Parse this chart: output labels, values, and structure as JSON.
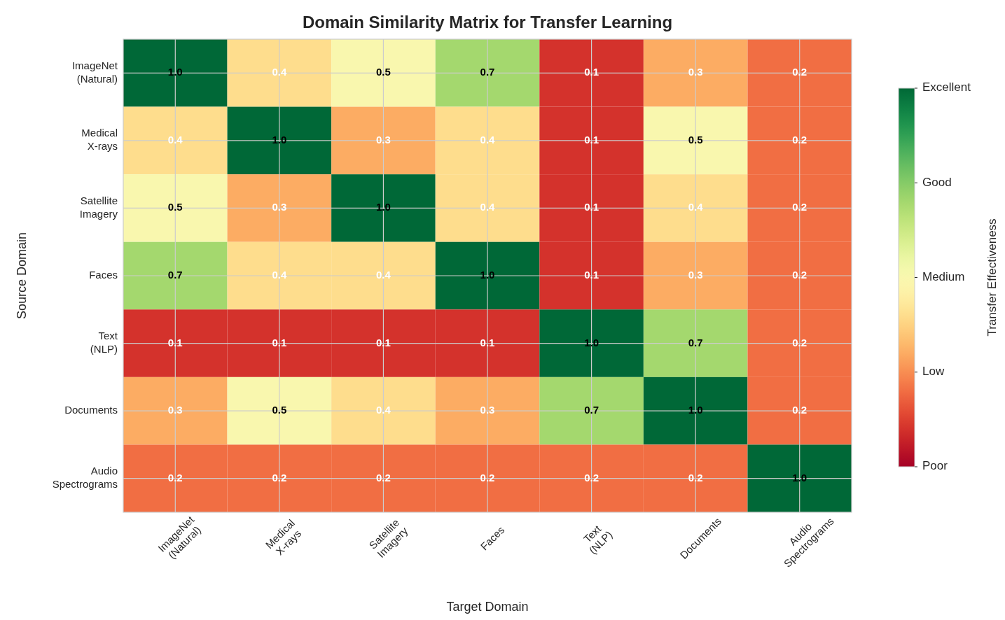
{
  "chart_data": {
    "type": "heatmap",
    "title": "Domain Similarity Matrix for Transfer Learning",
    "xlabel": "Target Domain",
    "ylabel": "Source Domain",
    "clabel": "Transfer Effectiveness",
    "categories": [
      "ImageNet\n(Natural)",
      "Medical\nX-rays",
      "Satellite\nImagery",
      "Faces",
      "Text\n(NLP)",
      "Documents",
      "Audio\nSpectrograms"
    ],
    "y_categories": [
      "ImageNet\n(Natural)",
      "Medical\nX-rays",
      "Satellite\nImagery",
      "Faces",
      "Text\n(NLP)",
      "Documents",
      "Audio\nSpectrograms"
    ],
    "cells": [
      [
        1.0,
        0.4,
        0.5,
        0.7,
        0.1,
        0.3,
        0.2
      ],
      [
        0.4,
        1.0,
        0.3,
        0.4,
        0.1,
        0.5,
        0.2
      ],
      [
        0.5,
        0.3,
        1.0,
        0.4,
        0.1,
        0.4,
        0.2
      ],
      [
        0.7,
        0.4,
        0.4,
        1.0,
        0.1,
        0.3,
        0.2
      ],
      [
        0.1,
        0.1,
        0.1,
        0.1,
        1.0,
        0.7,
        0.2
      ],
      [
        0.3,
        0.5,
        0.4,
        0.3,
        0.7,
        1.0,
        0.2
      ],
      [
        0.2,
        0.2,
        0.2,
        0.2,
        0.2,
        0.2,
        1.0
      ]
    ],
    "cell_labels": [
      [
        "1.0",
        "0.4",
        "0.5",
        "0.7",
        "0.1",
        "0.3",
        "0.2"
      ],
      [
        "0.4",
        "1.0",
        "0.3",
        "0.4",
        "0.1",
        "0.5",
        "0.2"
      ],
      [
        "0.5",
        "0.3",
        "1.0",
        "0.4",
        "0.1",
        "0.4",
        "0.2"
      ],
      [
        "0.7",
        "0.4",
        "0.4",
        "1.0",
        "0.1",
        "0.3",
        "0.2"
      ],
      [
        "0.1",
        "0.1",
        "0.1",
        "0.1",
        "1.0",
        "0.7",
        "0.2"
      ],
      [
        "0.3",
        "0.5",
        "0.4",
        "0.3",
        "0.7",
        "1.0",
        "0.2"
      ],
      [
        "0.2",
        "0.2",
        "0.2",
        "0.2",
        "0.2",
        "0.2",
        "1.0"
      ]
    ],
    "clim": [
      0,
      1
    ],
    "cticks": [
      {
        "value": 0,
        "label": "Poor"
      },
      {
        "value": 0.25,
        "label": "Low"
      },
      {
        "value": 0.5,
        "label": "Medium"
      },
      {
        "value": 0.75,
        "label": "Good"
      },
      {
        "value": 1,
        "label": "Excellent"
      }
    ],
    "grid": true
  }
}
